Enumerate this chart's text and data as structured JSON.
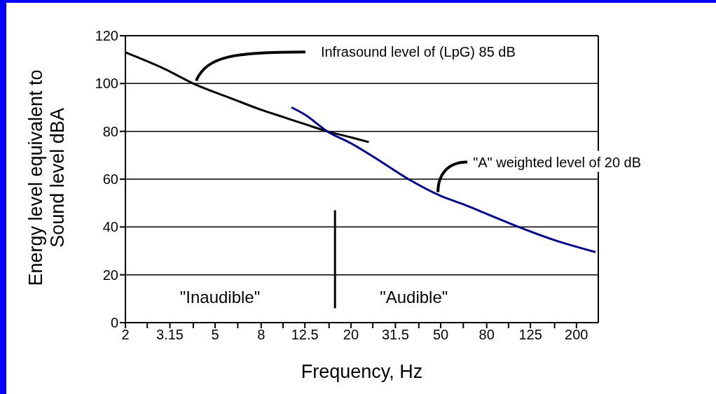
{
  "chart_data": {
    "type": "line",
    "xlabel": "Frequency, Hz",
    "ylabel": "Energy level equivalent to Sound level dBA",
    "log": "x",
    "xlim": [
      2,
      250
    ],
    "ylim": [
      0,
      120
    ],
    "xticks": [
      2,
      {
        "value": 2.5,
        "label": null
      },
      3.15,
      {
        "value": 4,
        "label": null
      },
      5,
      {
        "value": 6.3,
        "label": null
      },
      8,
      {
        "value": 10,
        "label": null
      },
      12.5,
      {
        "value": 16,
        "label": null
      },
      20,
      {
        "value": 25,
        "label": null
      },
      31.5,
      {
        "value": 40,
        "label": null
      },
      50,
      {
        "value": 63,
        "label": null
      },
      80,
      {
        "value": 100,
        "label": null
      },
      125,
      {
        "value": 160,
        "label": null
      },
      200
    ],
    "yticks": [
      0,
      20,
      40,
      60,
      80,
      100,
      120
    ],
    "grid": "y",
    "marker": "none",
    "series": [
      {
        "color": "#000000",
        "x": [
          2,
          3,
          4,
          6,
          8,
          10,
          12.5,
          15.7,
          20,
          24
        ],
        "values": [
          113,
          106,
          100,
          93.5,
          89,
          86,
          83,
          80,
          77.5,
          75.5
        ]
      },
      {
        "color": "#00008b",
        "x": [
          10.9,
          12.5,
          15.7,
          20,
          25,
          36,
          50,
          63,
          80,
          111,
          160,
          243
        ],
        "values": [
          90,
          87,
          80,
          75,
          69.5,
          60,
          53,
          49.5,
          45.5,
          40,
          34.5,
          29.5
        ]
      },
      {
        "color": "#000000",
        "x": [
          17,
          17
        ],
        "values": [
          6,
          47
        ]
      }
    ],
    "annotations": [
      {
        "text": "Infrasound level of (LpG) 85 dB",
        "x": 4,
        "y": 100
      },
      {
        "text": "\"A\" weighted level of 20 dB",
        "x": 53,
        "y": 54
      },
      "\"Inaudible\"",
      "\"Audible\""
    ]
  }
}
